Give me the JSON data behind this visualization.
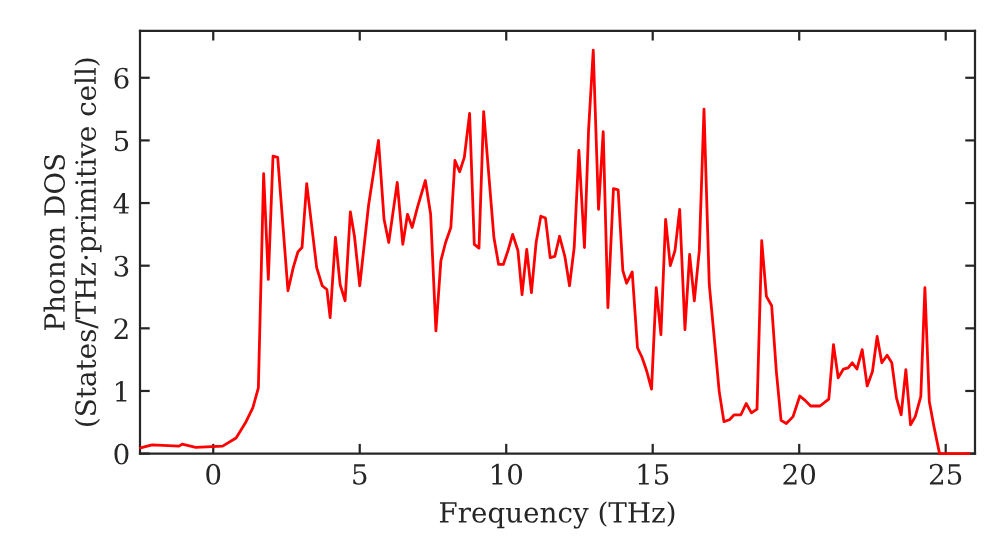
{
  "chart_data": {
    "type": "line",
    "xlabel": "Frequency (THz)",
    "ylabel": "Phonon DOS\n(States/THz·primitive cell)",
    "xlim": [
      -2.5,
      26
    ],
    "ylim": [
      0,
      6.75
    ],
    "xticks": [
      0,
      5,
      10,
      15,
      20,
      25
    ],
    "yticks": [
      0,
      1,
      2,
      3,
      4,
      5,
      6
    ],
    "grid": false,
    "line_style": "solid",
    "marker": "none",
    "series": [
      {
        "color": "#ff0000",
        "x": [
          -2.48,
          -2.09,
          -1.17,
          -1.06,
          -0.6,
          0.32,
          0.78,
          1.12,
          1.35,
          1.54,
          1.72,
          1.88,
          2.04,
          2.2,
          2.55,
          2.73,
          2.89,
          3.03,
          3.19,
          3.53,
          3.72,
          3.88,
          3.99,
          4.17,
          4.33,
          4.5,
          4.68,
          4.82,
          5.0,
          5.3,
          5.64,
          5.83,
          5.99,
          6.28,
          6.47,
          6.63,
          6.79,
          6.97,
          7.24,
          7.42,
          7.6,
          7.77,
          7.93,
          8.11,
          8.25,
          8.41,
          8.57,
          8.75,
          8.91,
          9.07,
          9.23,
          9.44,
          9.58,
          9.74,
          9.9,
          10.06,
          10.22,
          10.4,
          10.54,
          10.7,
          10.86,
          11.02,
          11.18,
          11.34,
          11.5,
          11.66,
          11.82,
          12.0,
          12.16,
          12.32,
          12.48,
          12.67,
          12.81,
          12.97,
          13.15,
          13.31,
          13.47,
          13.66,
          13.82,
          13.98,
          14.11,
          14.3,
          14.48,
          14.64,
          14.8,
          14.96,
          15.12,
          15.28,
          15.44,
          15.6,
          15.76,
          15.92,
          16.1,
          16.26,
          16.42,
          16.59,
          16.75,
          16.93,
          17.09,
          17.27,
          17.43,
          17.62,
          17.78,
          18.01,
          18.19,
          18.37,
          18.56,
          18.72,
          18.88,
          19.06,
          19.22,
          19.38,
          19.56,
          19.79,
          20.02,
          20.2,
          20.39,
          20.71,
          21.01,
          21.17,
          21.33,
          21.51,
          21.67,
          21.81,
          21.97,
          22.15,
          22.32,
          22.5,
          22.66,
          22.82,
          23.0,
          23.16,
          23.32,
          23.48,
          23.64,
          23.8,
          23.96,
          24.15,
          24.29,
          24.44,
          24.6,
          24.79,
          25.06,
          25.8
        ],
        "values": [
          0.09,
          0.14,
          0.12,
          0.15,
          0.1,
          0.12,
          0.25,
          0.51,
          0.73,
          1.05,
          4.47,
          2.78,
          4.75,
          4.73,
          2.6,
          2.97,
          3.22,
          3.29,
          4.31,
          2.97,
          2.68,
          2.62,
          2.17,
          3.45,
          2.7,
          2.44,
          3.86,
          3.47,
          2.68,
          3.96,
          5.0,
          3.74,
          3.37,
          4.33,
          3.34,
          3.82,
          3.61,
          3.93,
          4.36,
          3.82,
          1.96,
          3.08,
          3.37,
          3.61,
          4.68,
          4.5,
          4.73,
          5.43,
          3.34,
          3.28,
          5.46,
          4.25,
          3.45,
          3.02,
          3.02,
          3.24,
          3.5,
          3.24,
          2.54,
          3.26,
          2.57,
          3.37,
          3.79,
          3.76,
          3.13,
          3.15,
          3.47,
          3.15,
          2.68,
          3.29,
          4.84,
          3.29,
          5.16,
          6.44,
          3.9,
          5.14,
          2.33,
          4.23,
          4.21,
          2.92,
          2.72,
          2.9,
          1.69,
          1.53,
          1.31,
          1.03,
          2.65,
          1.9,
          3.74,
          3.0,
          3.24,
          3.9,
          1.98,
          3.18,
          2.44,
          3.24,
          5.5,
          2.7,
          1.9,
          0.99,
          0.51,
          0.54,
          0.62,
          0.62,
          0.8,
          0.65,
          0.71,
          3.4,
          2.51,
          2.36,
          1.31,
          0.53,
          0.48,
          0.59,
          0.92,
          0.85,
          0.76,
          0.76,
          0.87,
          1.74,
          1.21,
          1.35,
          1.37,
          1.45,
          1.35,
          1.66,
          1.08,
          1.31,
          1.87,
          1.45,
          1.57,
          1.45,
          0.89,
          0.62,
          1.34,
          0.46,
          0.59,
          0.91,
          2.65,
          0.83,
          0.43,
          0,
          0,
          0
        ]
      }
    ]
  }
}
